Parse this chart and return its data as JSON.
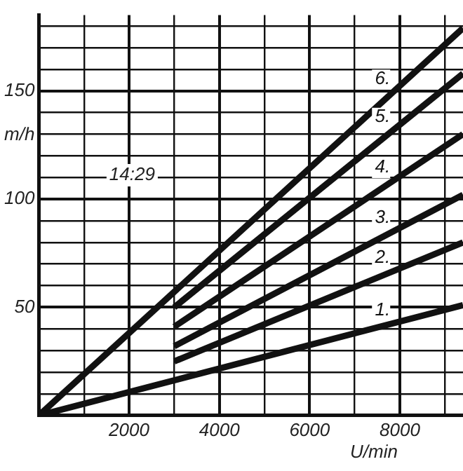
{
  "chart_data": {
    "type": "line",
    "xlabel": "U/min",
    "ylabel": "m/h",
    "annotations": [
      "14:29"
    ],
    "xlim": [
      0,
      9400
    ],
    "ylim": [
      0,
      185
    ],
    "xticks": [
      {
        "value": 0,
        "label": null
      },
      {
        "value": 1000,
        "label": null
      },
      2000,
      {
        "value": 3000,
        "label": null
      },
      4000,
      {
        "value": 5000,
        "label": null
      },
      6000,
      {
        "value": 7000,
        "label": null
      },
      8000,
      {
        "value": 9000,
        "label": null
      }
    ],
    "yticks": [
      {
        "value": 0,
        "label": null
      },
      {
        "value": 10,
        "label": null
      },
      {
        "value": 20,
        "label": null
      },
      {
        "value": 30,
        "label": null
      },
      {
        "value": 40,
        "label": null
      },
      50,
      {
        "value": 60,
        "label": null
      },
      {
        "value": 70,
        "label": null
      },
      {
        "value": 80,
        "label": null
      },
      {
        "value": 90,
        "label": null
      },
      100,
      {
        "value": 110,
        "label": null
      },
      {
        "value": 120,
        "label": null
      },
      {
        "value": 130,
        "label": null
      },
      {
        "value": 140,
        "label": null
      },
      150,
      {
        "value": 160,
        "label": null
      },
      {
        "value": 170,
        "label": null
      },
      {
        "value": 180,
        "label": null
      }
    ],
    "grid": true,
    "marker": "none",
    "line_style": "solid",
    "series": [
      {
        "name": "1.",
        "color": "#111111",
        "x": [
          0,
          9400
        ],
        "values": [
          0,
          51
        ]
      },
      {
        "name": "2.",
        "color": "#111111",
        "x": [
          3000,
          9400
        ],
        "values": [
          25,
          80
        ]
      },
      {
        "name": "3.",
        "color": "#111111",
        "x": [
          3000,
          9400
        ],
        "values": [
          32,
          102
        ]
      },
      {
        "name": "4.",
        "color": "#111111",
        "x": [
          3000,
          9400
        ],
        "values": [
          41,
          130
        ]
      },
      {
        "name": "5.",
        "color": "#111111",
        "x": [
          3000,
          9400
        ],
        "values": [
          50,
          158
        ]
      },
      {
        "name": "6.",
        "color": "#111111",
        "x": [
          0,
          9400
        ],
        "values": [
          0,
          179
        ]
      }
    ]
  }
}
